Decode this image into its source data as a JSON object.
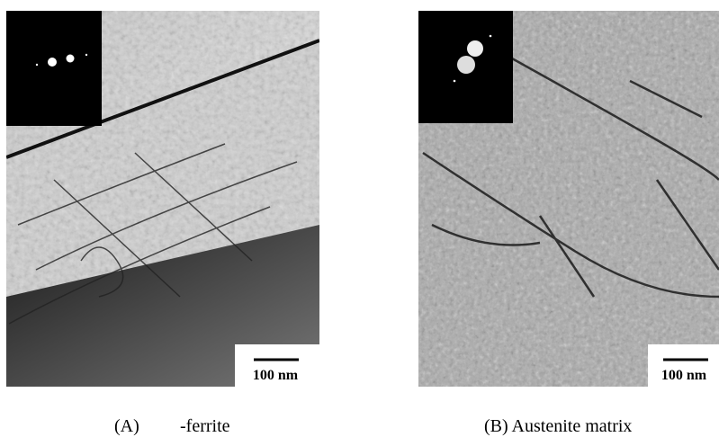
{
  "panels": [
    {
      "label": "(A)",
      "caption": "-ferrite",
      "scale_bar": "100 nm"
    },
    {
      "caption": "(B) Austenite matrix",
      "scale_bar": "100 nm"
    }
  ]
}
